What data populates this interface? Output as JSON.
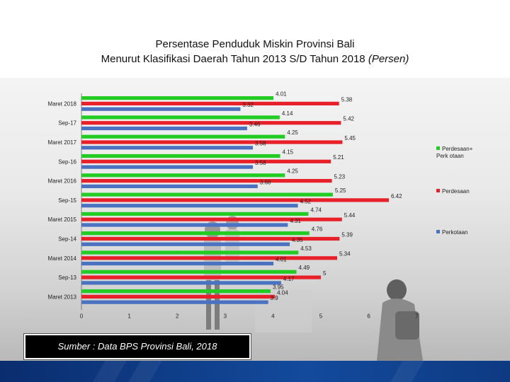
{
  "title": {
    "line1": "Persentase Penduduk Miskin Provinsi Bali",
    "line2_main": "Menurut Klasifikasi Daerah Tahun 2013 S/D Tahun 2018",
    "line2_italic": "(Persen)"
  },
  "source": "Sumber  : Data BPS Provinsi Bali, 2018",
  "colors": {
    "series1": "#22cc22",
    "series2": "#e8202a",
    "series3": "#4a72c0"
  },
  "chart_data": {
    "type": "bar",
    "orientation": "horizontal",
    "categories": [
      "Maret 2018",
      "Sep-17",
      "Maret 2017",
      "Sep-16",
      "Maret 2016",
      "Sep-15",
      "Maret 2015",
      "Sep-14",
      "Maret 2014",
      "Sep-13",
      "Maret 2013"
    ],
    "series": [
      {
        "name": "Perdesaan+Perkotaan",
        "legend_label": "Perdesaan+ Perk otaan",
        "values": [
          4.01,
          4.14,
          4.25,
          4.15,
          4.25,
          5.25,
          4.74,
          4.76,
          4.53,
          4.49,
          3.95
        ]
      },
      {
        "name": "Perdesaan",
        "legend_label": "Perdesaan",
        "values": [
          5.38,
          5.42,
          5.45,
          5.21,
          5.23,
          6.42,
          5.44,
          5.39,
          5.34,
          5,
          4.04
        ]
      },
      {
        "name": "Perkotaan",
        "legend_label": "Perkotaan",
        "values": [
          3.32,
          3.46,
          3.58,
          3.58,
          3.68,
          4.52,
          4.31,
          4.35,
          4.01,
          4.17,
          3.9
        ]
      }
    ],
    "value_labels": [
      [
        "4.01",
        "4.14",
        "4.25",
        "4.15",
        "4.25",
        "5.25",
        "4.74",
        "4.76",
        "4.53",
        "4.49",
        "3.95"
      ],
      [
        "5.38",
        "5.42",
        "5.45",
        "5.21",
        "5.23",
        "6.42",
        "5.44",
        "5.39",
        "5.34",
        "5",
        "4.04"
      ],
      [
        "3.32",
        "3.46",
        "3.58",
        "3.58",
        "3.68",
        "4.52",
        "4.31",
        "4.35",
        "4.01",
        "4.17",
        "3.9"
      ]
    ],
    "x_ticks": [
      "0",
      "1",
      "2",
      "3",
      "4",
      "5",
      "6",
      "7"
    ],
    "xlim": [
      0,
      7
    ],
    "legend_position": "right",
    "grid": false,
    "xlabel": "",
    "ylabel": ""
  }
}
